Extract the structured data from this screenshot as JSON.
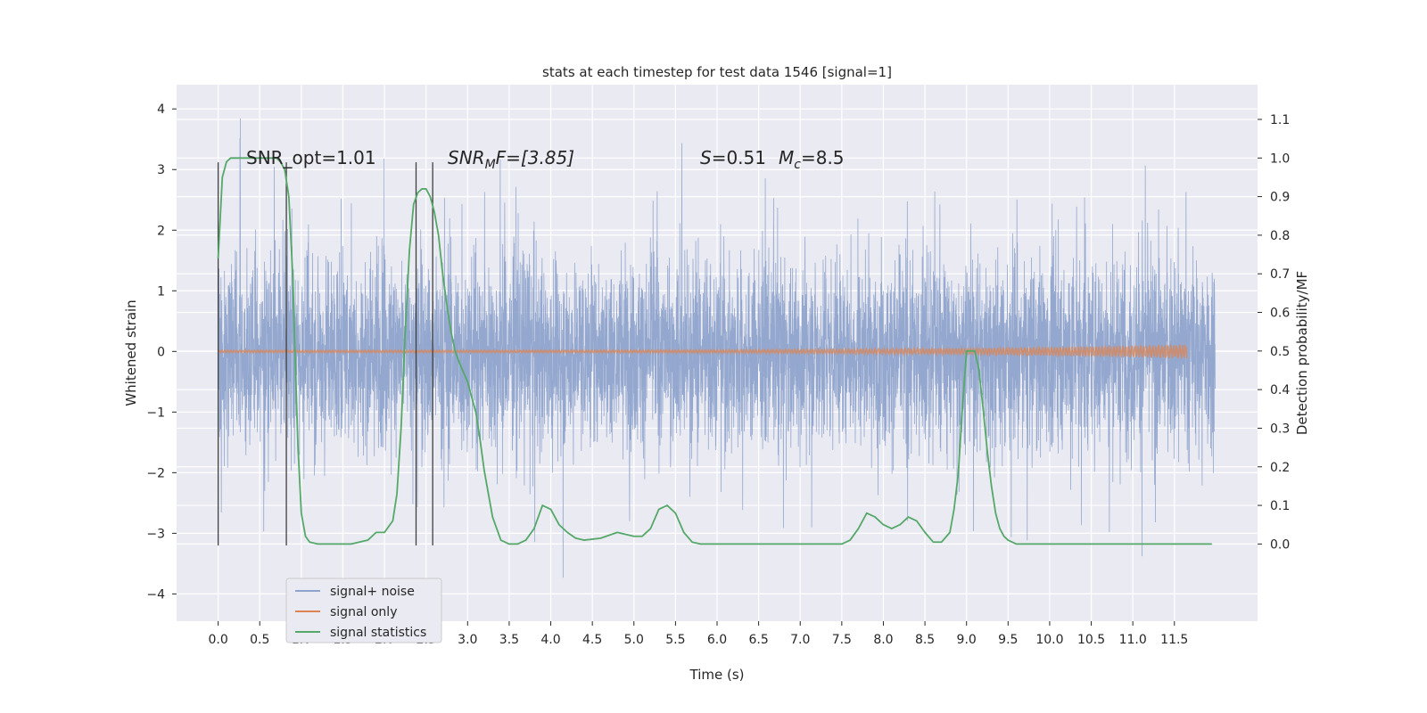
{
  "chart_data": {
    "type": "line",
    "title": "stats at each timestep for test data 1546 [signal=1]",
    "xlabel": "Time (s)",
    "ylabel": "Whitened strain",
    "y2label": "Detection probability/MF",
    "xlim": [
      -0.5,
      12.5
    ],
    "ylim": [
      -4.45,
      4.4
    ],
    "y2lim": [
      -0.2,
      1.19
    ],
    "x_ticks": [
      0.0,
      0.5,
      1.0,
      1.5,
      2.0,
      2.5,
      3.0,
      3.5,
      4.0,
      4.5,
      5.0,
      5.5,
      6.0,
      6.5,
      7.0,
      7.5,
      8.0,
      8.5,
      9.0,
      9.5,
      10.0,
      10.5,
      11.0,
      11.5
    ],
    "x_tick_labels": [
      "0.0",
      "0.5",
      "1.0",
      "1.5",
      "2.0",
      "2.5",
      "3.0",
      "3.5",
      "4.0",
      "4.5",
      "5.0",
      "5.5",
      "6.0",
      "6.5",
      "7.0",
      "7.5",
      "8.0",
      "8.5",
      "9.0",
      "9.5",
      "10.0",
      "10.5",
      "11.0",
      "11.5"
    ],
    "y_ticks": [
      -4,
      -3,
      -2,
      -1,
      0,
      1,
      2,
      3,
      4
    ],
    "y_tick_labels": [
      "−4",
      "−3",
      "−2",
      "−1",
      "0",
      "1",
      "2",
      "3",
      "4"
    ],
    "y2_ticks": [
      0.0,
      0.1,
      0.2,
      0.3,
      0.4,
      0.5,
      0.6,
      0.7,
      0.8,
      0.9,
      1.0,
      1.1
    ],
    "y2_tick_labels": [
      "0.0",
      "0.1",
      "0.2",
      "0.3",
      "0.4",
      "0.5",
      "0.6",
      "0.7",
      "0.8",
      "0.9",
      "1.0",
      "1.1"
    ],
    "grid": true,
    "legend_position": "lower-left",
    "annotations": {
      "snr_opt": "SNR_opt=1.01",
      "snr_mf_main": "SNR",
      "snr_mf_sub": "M",
      "snr_mf_rest": "F=[3.85]",
      "s_label": "S",
      "s_value": "=0.51",
      "mc_label": "M",
      "mc_sub": "c",
      "mc_value": "=8.5"
    },
    "vertical_markers": [
      0.0,
      0.82,
      2.38,
      2.58
    ],
    "series": [
      {
        "name": "signal+ noise",
        "color": "#8fa4cc",
        "x_range": [
          0.0,
          11.99
        ],
        "sample_rate_hz": 500,
        "core_band": [
          -1.3,
          1.3
        ],
        "typical_peaks": [
          -2.8,
          2.9
        ],
        "extremes": [
          -4.1,
          4.0
        ],
        "axis": "left"
      },
      {
        "name": "signal only",
        "color": "#dd8452",
        "x_range": [
          0.0,
          11.65
        ],
        "amplitude_start": 0.02,
        "amplitude_end": 0.12,
        "axis": "left"
      },
      {
        "name": "signal statistics",
        "color": "#55a868",
        "axis": "right",
        "x": [
          0.0,
          0.05,
          0.1,
          0.15,
          0.2,
          0.3,
          0.4,
          0.5,
          0.6,
          0.7,
          0.75,
          0.8,
          0.85,
          0.9,
          0.93,
          0.96,
          1.0,
          1.05,
          1.1,
          1.2,
          1.4,
          1.6,
          1.8,
          1.9,
          2.0,
          2.1,
          2.15,
          2.2,
          2.25,
          2.3,
          2.35,
          2.4,
          2.45,
          2.5,
          2.55,
          2.6,
          2.65,
          2.7,
          2.75,
          2.8,
          2.85,
          2.9,
          3.0,
          3.1,
          3.15,
          3.2,
          3.3,
          3.4,
          3.5,
          3.6,
          3.7,
          3.8,
          3.9,
          4.0,
          4.1,
          4.2,
          4.3,
          4.4,
          4.6,
          4.8,
          5.0,
          5.1,
          5.2,
          5.3,
          5.4,
          5.5,
          5.6,
          5.7,
          5.8,
          6.0,
          6.5,
          7.0,
          7.5,
          7.6,
          7.7,
          7.8,
          7.9,
          8.0,
          8.1,
          8.2,
          8.3,
          8.4,
          8.5,
          8.6,
          8.7,
          8.8,
          8.85,
          8.9,
          8.95,
          9.0,
          9.05,
          9.1,
          9.15,
          9.2,
          9.25,
          9.3,
          9.35,
          9.4,
          9.45,
          9.5,
          9.6,
          9.8,
          10.0,
          10.5,
          11.0,
          11.5,
          11.95
        ],
        "values": [
          0.74,
          0.95,
          0.99,
          1.0,
          1.0,
          1.0,
          1.0,
          1.0,
          1.0,
          1.0,
          0.99,
          0.97,
          0.9,
          0.68,
          0.45,
          0.25,
          0.08,
          0.02,
          0.005,
          0.0,
          0.0,
          0.0,
          0.01,
          0.03,
          0.03,
          0.06,
          0.13,
          0.3,
          0.55,
          0.76,
          0.88,
          0.91,
          0.92,
          0.92,
          0.9,
          0.86,
          0.8,
          0.7,
          0.62,
          0.55,
          0.5,
          0.47,
          0.42,
          0.34,
          0.27,
          0.19,
          0.07,
          0.01,
          0.0,
          0.0,
          0.01,
          0.04,
          0.1,
          0.09,
          0.05,
          0.03,
          0.015,
          0.01,
          0.015,
          0.03,
          0.02,
          0.02,
          0.04,
          0.09,
          0.1,
          0.08,
          0.03,
          0.005,
          0.0,
          0.0,
          0.0,
          0.0,
          0.0,
          0.01,
          0.04,
          0.08,
          0.07,
          0.05,
          0.04,
          0.05,
          0.07,
          0.06,
          0.03,
          0.005,
          0.005,
          0.03,
          0.09,
          0.18,
          0.35,
          0.5,
          0.5,
          0.5,
          0.45,
          0.35,
          0.24,
          0.15,
          0.08,
          0.04,
          0.02,
          0.01,
          0.0,
          0.0,
          0.0,
          0.0,
          0.0,
          0.0,
          0.0
        ]
      }
    ],
    "legend": [
      {
        "label": "signal+ noise",
        "color": "#8fa4cc"
      },
      {
        "label": "signal only",
        "color": "#dd8452"
      },
      {
        "label": "signal statistics",
        "color": "#55a868"
      }
    ]
  }
}
